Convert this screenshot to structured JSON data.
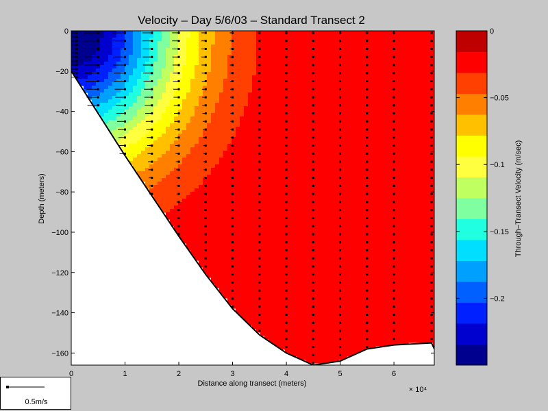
{
  "chart_data": {
    "type": "heatmap",
    "title": "Velocity – Day 5/6/03 – Standard Transect 2",
    "xlabel": "Distance along transect (meters)",
    "ylabel": "Depth (meters)",
    "x_exponent": "× 10⁴",
    "xlim": [
      0,
      6.75
    ],
    "ylim": [
      -166,
      0
    ],
    "x_ticks": [
      "0",
      "1",
      "2",
      "3",
      "4",
      "5",
      "6"
    ],
    "y_ticks": [
      "0",
      "−20",
      "−40",
      "−60",
      "−80",
      "−100",
      "−120",
      "−140",
      "−160"
    ],
    "colorbar": {
      "label": "Through−Transect Velocity (m/sec)",
      "range": [
        -0.25,
        0.0
      ],
      "ticks": [
        "0",
        "−0.05",
        "−0.1",
        "−0.15",
        "−0.2"
      ],
      "colors": [
        "#00008f",
        "#0000cf",
        "#0020ff",
        "#0060ff",
        "#00a0ff",
        "#00dfff",
        "#20ffdf",
        "#80ffa0",
        "#c0ff60",
        "#ffff40",
        "#ffff00",
        "#ffc000",
        "#ff8000",
        "#ff4000",
        "#ff0000",
        "#bf0000"
      ]
    },
    "bottom_profile": [
      [
        0,
        -20
      ],
      [
        0.5,
        -41
      ],
      [
        1,
        -62
      ],
      [
        1.5,
        -82
      ],
      [
        2,
        -102
      ],
      [
        2.5,
        -121
      ],
      [
        3,
        -138
      ],
      [
        3.5,
        -151
      ],
      [
        4,
        -160
      ],
      [
        4.5,
        -166
      ],
      [
        5,
        -164
      ],
      [
        5.5,
        -158
      ],
      [
        6,
        -156
      ],
      [
        6.7,
        -155
      ],
      [
        6.75,
        -158
      ]
    ],
    "velocity_stations_x": [
      0.1,
      0.5,
      1.0,
      1.5,
      2.0,
      2.5,
      3.0,
      3.5,
      4.0,
      4.5,
      5.0,
      5.5,
      6.0,
      6.7
    ]
  },
  "scale_arrow": {
    "label": "0.5m/s"
  }
}
